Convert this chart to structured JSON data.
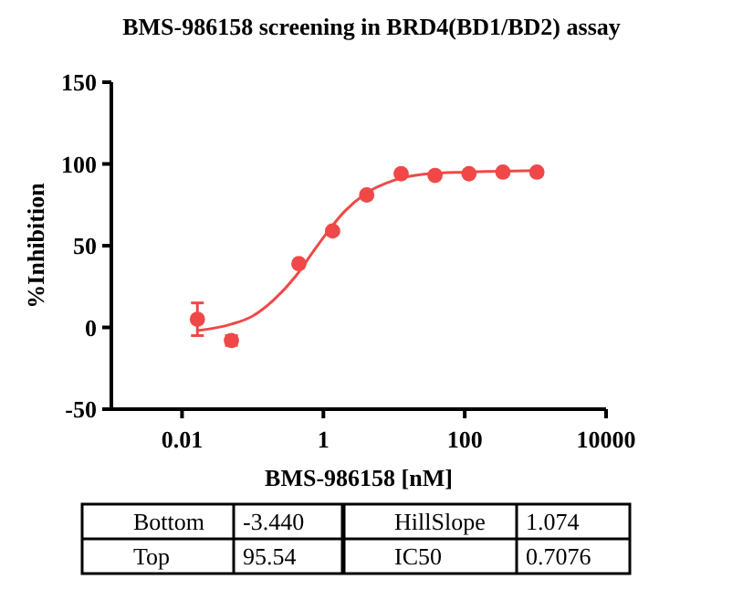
{
  "chart_data": {
    "type": "scatter",
    "title": "BMS-986158 screening in BRD4(BD1/BD2) assay",
    "xlabel": "BMS-986158 [nM]",
    "ylabel": "%Inhibition",
    "log": "x",
    "xlim": [
      0.001,
      10000
    ],
    "xticks": [
      0.01,
      1,
      100,
      10000
    ],
    "ylim": [
      -50,
      150
    ],
    "yticks": [
      -50,
      0,
      50,
      100,
      150
    ],
    "grid": false,
    "marker": "circle",
    "series": [
      {
        "color": "#f04848",
        "x": [
          0.0165,
          0.05,
          0.45,
          1.35,
          4.1,
          12.6,
          38,
          115,
          347,
          1050
        ],
        "values": [
          5,
          -8,
          39,
          59,
          81,
          94,
          93,
          94,
          95,
          95
        ],
        "errors": [
          10,
          3,
          null,
          null,
          null,
          null,
          null,
          null,
          null,
          null
        ]
      },
      {
        "type": "line",
        "color": "#f04848",
        "marker": "none",
        "x": [
          0.0165,
          0.05,
          0.1,
          0.2,
          0.4,
          0.7076,
          1,
          2,
          4,
          10,
          30,
          100,
          1050
        ],
        "values": [
          -2,
          2,
          7,
          17,
          31,
          46,
          55,
          71,
          82,
          90,
          94,
          95,
          96
        ]
      }
    ],
    "annotations": [
      "Bottom",
      "-3.440",
      "HillSlope",
      "1.074",
      "Top",
      "95.54",
      "IC50",
      "0.7076"
    ]
  }
}
